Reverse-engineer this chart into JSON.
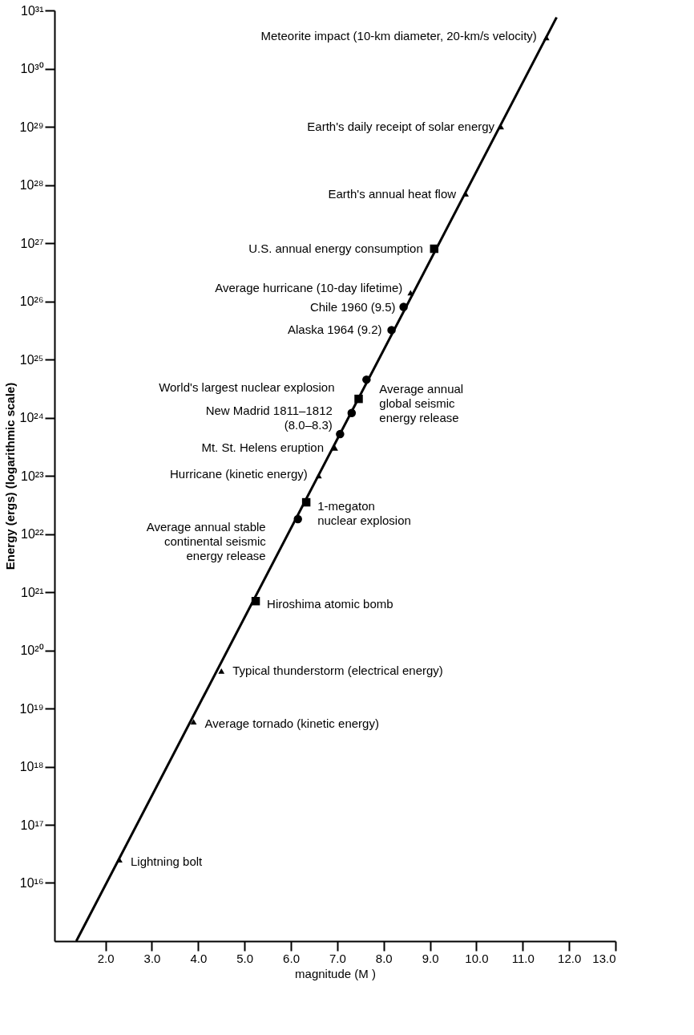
{
  "chart_data": {
    "type": "scatter",
    "xlabel": "magnitude (M )",
    "ylabel": "Energy (ergs) (logarithmic scale)",
    "log": "y",
    "grid": false,
    "xlim": [
      0.9,
      13.0
    ],
    "ylim": [
      1000000000000000.0,
      1e+31
    ],
    "xticks": [
      {
        "value": 2,
        "label": "2.0"
      },
      {
        "value": 3,
        "label": "3.0"
      },
      {
        "value": 4,
        "label": "4.0"
      },
      {
        "value": 5,
        "label": "5.0"
      },
      {
        "value": 6,
        "label": "6.0"
      },
      {
        "value": 7,
        "label": "7.0"
      },
      {
        "value": 8,
        "label": "8.0"
      },
      {
        "value": 9,
        "label": "9.0"
      },
      {
        "value": 10,
        "label": "10.0"
      },
      {
        "value": 11,
        "label": "11.0"
      },
      {
        "value": 12,
        "label": "12.0"
      },
      {
        "value": 13,
        "label": "13.0"
      }
    ],
    "yticks": [
      {
        "value": 1e+16,
        "label": "10¹⁶"
      },
      {
        "value": 1e+17,
        "label": "10¹⁷"
      },
      {
        "value": 1e+18,
        "label": "10¹⁸"
      },
      {
        "value": 1e+19,
        "label": "10¹⁹"
      },
      {
        "value": 1e+20,
        "label": "10²⁰"
      },
      {
        "value": 1e+21,
        "label": "10²¹"
      },
      {
        "value": 1e+22,
        "label": "10²²"
      },
      {
        "value": 1e+23,
        "label": "10²³"
      },
      {
        "value": 1e+24,
        "label": "10²⁴"
      },
      {
        "value": 1e+25,
        "label": "10²⁵"
      },
      {
        "value": 1e+26,
        "label": "10²⁶"
      },
      {
        "value": 1e+27,
        "label": "10²⁷"
      },
      {
        "value": 1e+28,
        "label": "10²⁸"
      },
      {
        "value": 1e+29,
        "label": "10²⁹"
      },
      {
        "value": 1e+30,
        "label": "10³⁰"
      },
      {
        "value": 1e+31,
        "label": "10³¹"
      }
    ],
    "series": [
      {
        "type": "line",
        "color": "#000000",
        "marker": "none",
        "line_style": "solid",
        "x": [
          1.37,
          11.73
        ],
        "values": [
          1000000000000000.0,
          7.6e+30
        ]
      },
      {
        "color": "#000000",
        "marker": "triangle",
        "x": [
          11.51,
          10.53,
          9.77,
          8.58,
          6.95,
          6.6,
          4.5,
          3.9,
          2.3
        ],
        "values": [
          3.4e+30,
          1e+29,
          7e+27,
          1.4e+26,
          3e+23,
          1e+23,
          4.4e+19,
          5.9e+18,
          2.5e+16
        ]
      },
      {
        "color": "#000000",
        "marker": "circle",
        "x": [
          8.43,
          8.17,
          7.63,
          7.31,
          7.06,
          6.15
        ],
        "values": [
          8e+25,
          3.2e+25,
          4.5e+24,
          1.2e+24,
          5.2e+23,
          1.8e+22
        ]
      },
      {
        "color": "#000000",
        "marker": "square",
        "x": [
          9.09,
          7.46,
          6.33,
          5.24
        ],
        "values": [
          8e+26,
          2.1e+24,
          3.5e+22,
          7e+20
        ]
      }
    ],
    "annotations": [
      {
        "text": "Meteorite impact (10-km diameter, 20-km/s velocity)",
        "x": 11.51,
        "y": 3.4e+30
      },
      {
        "text": "Earth's daily receipt of solar energy",
        "x": 10.53,
        "y": 1e+29
      },
      {
        "text": "Earth's annual heat flow",
        "x": 9.77,
        "y": 7e+27
      },
      {
        "text": "U.S. annual energy consumption",
        "x": 9.09,
        "y": 8e+26
      },
      {
        "text": "Average hurricane (10-day lifetime)",
        "x": 8.58,
        "y": 1.4e+26
      },
      {
        "text": "Chile 1960 (9.5)",
        "x": 8.43,
        "y": 8e+25
      },
      {
        "text": "Alaska 1964 (9.2)",
        "x": 8.17,
        "y": 3.2e+25
      },
      {
        "text": "World's largest nuclear explosion",
        "x": 7.46,
        "y": 2.1e+24
      },
      {
        "text": "Average annual\nglobal seismic\nenergy release",
        "x": 7.63,
        "y": 4.5e+24
      },
      {
        "text": "New Madrid 1811–1812\n(8.0–8.3)",
        "x": 7.31,
        "y": 1.2e+24
      },
      {
        "text": "Mt. St. Helens eruption",
        "x": 6.95,
        "y": 3e+23
      },
      {
        "text": "Hurricane (kinetic energy)",
        "x": 6.6,
        "y": 1e+23
      },
      {
        "text": "1-megaton\nnuclear explosion",
        "x": 6.33,
        "y": 3.5e+22
      },
      {
        "text": "Average annual stable\ncontinental seismic\nenergy release",
        "x": 6.15,
        "y": 1.8e+22
      },
      {
        "text": "Hiroshima atomic bomb",
        "x": 5.24,
        "y": 7e+20
      },
      {
        "text": "Typical thunderstorm (electrical energy)",
        "x": 4.5,
        "y": 4.4e+19
      },
      {
        "text": "Average tornado (kinetic energy)",
        "x": 3.9,
        "y": 5.9e+18
      },
      {
        "text": "Lightning bolt",
        "x": 2.3,
        "y": 2.5e+16
      }
    ]
  }
}
